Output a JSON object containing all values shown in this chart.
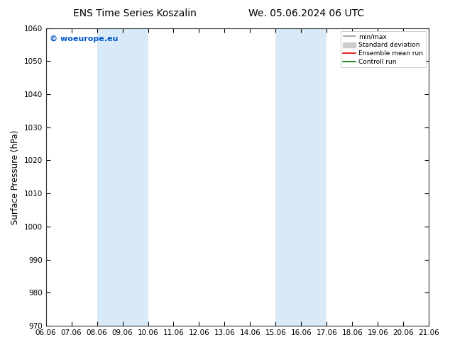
{
  "title_left": "ENS Time Series Koszalin",
  "title_right": "We. 05.06.2024 06 UTC",
  "ylabel": "Surface Pressure (hPa)",
  "ylim": [
    970,
    1060
  ],
  "yticks": [
    970,
    980,
    990,
    1000,
    1010,
    1020,
    1030,
    1040,
    1050,
    1060
  ],
  "x_labels": [
    "06.06",
    "07.06",
    "08.06",
    "09.06",
    "10.06",
    "11.06",
    "12.06",
    "13.06",
    "14.06",
    "15.06",
    "16.06",
    "17.06",
    "18.06",
    "19.06",
    "20.06",
    "21.06"
  ],
  "x_values": [
    0,
    1,
    2,
    3,
    4,
    5,
    6,
    7,
    8,
    9,
    10,
    11,
    12,
    13,
    14,
    15
  ],
  "shade_bands": [
    {
      "xmin": 2,
      "xmax": 4,
      "color": "#d8eaf7"
    },
    {
      "xmin": 9,
      "xmax": 11,
      "color": "#d8eaf7"
    }
  ],
  "watermark": "© woeurope.eu",
  "watermark_color": "#0055cc",
  "legend_entries": [
    {
      "label": "min/max",
      "color": "#999999",
      "lw": 1.2
    },
    {
      "label": "Standard deviation",
      "color": "#cccccc",
      "lw": 6
    },
    {
      "label": "Ensemble mean run",
      "color": "#dd0000",
      "lw": 1.2
    },
    {
      "label": "Controll run",
      "color": "#007700",
      "lw": 1.2
    }
  ],
  "background_color": "#ffffff",
  "title_fontsize": 10,
  "tick_fontsize": 7.5,
  "ylabel_fontsize": 8.5
}
